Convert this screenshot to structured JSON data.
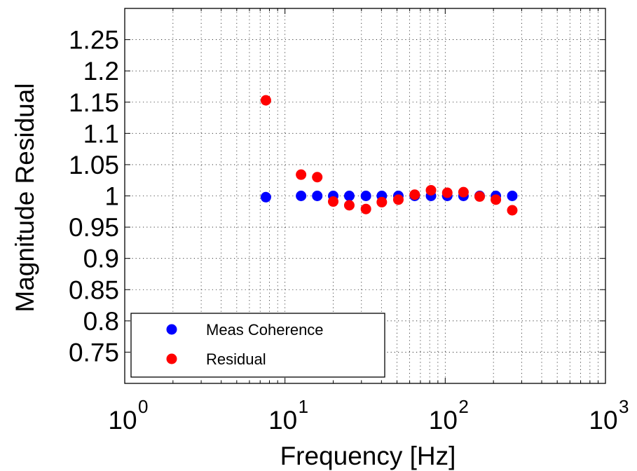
{
  "chart_data": {
    "type": "scatter",
    "title": "",
    "xlabel": "Frequency [Hz]",
    "ylabel": "Magnitude Residual",
    "xscale": "log",
    "xlim": [
      1,
      1000
    ],
    "ylim": [
      0.7,
      1.3
    ],
    "grid": true,
    "legend_location": "bottom-left",
    "x_ticks": [
      {
        "value": 1,
        "base": "10",
        "exp": "0"
      },
      {
        "value": 10,
        "base": "10",
        "exp": "1"
      },
      {
        "value": 100,
        "base": "10",
        "exp": "2"
      },
      {
        "value": 1000,
        "base": "10",
        "exp": "3"
      }
    ],
    "y_ticks": [
      {
        "value": 0.75,
        "label": "0.75"
      },
      {
        "value": 0.8,
        "label": "0.8"
      },
      {
        "value": 0.85,
        "label": "0.85"
      },
      {
        "value": 0.9,
        "label": "0.9"
      },
      {
        "value": 0.95,
        "label": "0.95"
      },
      {
        "value": 1.0,
        "label": "1"
      },
      {
        "value": 1.05,
        "label": "1.05"
      },
      {
        "value": 1.1,
        "label": "1.1"
      },
      {
        "value": 1.15,
        "label": "1.15"
      },
      {
        "value": 1.2,
        "label": "1.2"
      },
      {
        "value": 1.25,
        "label": "1.25"
      }
    ],
    "series": [
      {
        "name": "Meas Coherence",
        "color": "#0000ff",
        "points": [
          [
            7.6,
            0.998
          ],
          [
            12.6,
            1.0
          ],
          [
            15.9,
            1.0
          ],
          [
            20.0,
            1.0
          ],
          [
            25.2,
            1.0
          ],
          [
            32.0,
            1.0
          ],
          [
            40.2,
            1.0
          ],
          [
            51.0,
            1.0
          ],
          [
            64.5,
            1.0
          ],
          [
            81.5,
            1.0
          ],
          [
            103.0,
            1.0
          ],
          [
            130.0,
            1.0
          ],
          [
            164.0,
            1.0
          ],
          [
            207.0,
            1.0
          ],
          [
            262.0,
            1.0
          ]
        ]
      },
      {
        "name": "Residual",
        "color": "#ff0000",
        "points": [
          [
            7.6,
            1.153
          ],
          [
            12.6,
            1.034
          ],
          [
            15.9,
            1.03
          ],
          [
            20.0,
            0.991
          ],
          [
            25.2,
            0.985
          ],
          [
            32.0,
            0.979
          ],
          [
            40.2,
            0.99
          ],
          [
            51.0,
            0.994
          ],
          [
            64.5,
            1.002
          ],
          [
            81.5,
            1.009
          ],
          [
            103.0,
            1.005
          ],
          [
            130.0,
            1.006
          ],
          [
            164.0,
            0.999
          ],
          [
            207.0,
            0.994
          ],
          [
            262.0,
            0.977
          ]
        ]
      }
    ]
  }
}
